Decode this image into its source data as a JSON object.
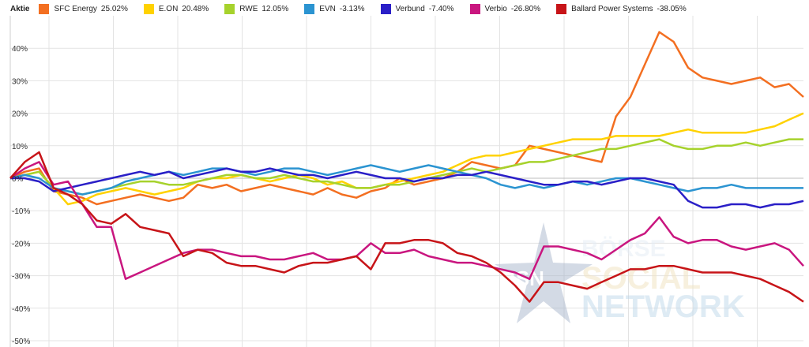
{
  "legend": {
    "title": "Aktie"
  },
  "watermark": {
    "badge": "BSN",
    "line1": "BÖRSE",
    "line2": "SOCIAL",
    "line3": "NETWORK"
  },
  "chart_data": {
    "type": "line",
    "ylim": [
      -50,
      50
    ],
    "yticks": [
      40,
      30,
      20,
      10,
      0,
      -10,
      -20,
      -30,
      -40,
      -50
    ],
    "ytick_labels": [
      "40%",
      "30%",
      "20%",
      "10%",
      "0%",
      "-10%",
      "-20%",
      "-30%",
      "-40%",
      "-50%"
    ],
    "grid": true,
    "legend_position": "top",
    "series": [
      {
        "name": "SFC Energy",
        "value_label": "25.02%",
        "color": "#f36f21",
        "values": [
          0,
          2,
          3,
          -4,
          -5,
          -6,
          -8,
          -7,
          -6,
          -5,
          -6,
          -7,
          -6,
          -2,
          -3,
          -2,
          -4,
          -3,
          -2,
          -3,
          -4,
          -5,
          -3,
          -5,
          -6,
          -4,
          -3,
          0,
          -2,
          -1,
          0,
          2,
          5,
          4,
          3,
          4,
          10,
          9,
          8,
          7,
          6,
          5,
          19,
          25,
          35,
          45,
          42,
          34,
          31,
          30,
          29,
          30,
          31,
          28,
          29,
          25
        ]
      },
      {
        "name": "E.ON",
        "value_label": "20.48%",
        "color": "#ffd200",
        "values": [
          0,
          1,
          2,
          -3,
          -8,
          -7,
          -5,
          -4,
          -3,
          -4,
          -5,
          -4,
          -3,
          -1,
          0,
          0,
          1,
          0,
          -1,
          0,
          1,
          0,
          -2,
          -1,
          -3,
          -3,
          -2,
          -1,
          0,
          1,
          2,
          4,
          6,
          7,
          7,
          8,
          9,
          10,
          11,
          12,
          12,
          12,
          13,
          13,
          13,
          13,
          14,
          15,
          14,
          14,
          14,
          14,
          15,
          16,
          18,
          20
        ]
      },
      {
        "name": "RWE",
        "value_label": "12.05%",
        "color": "#a6d22c",
        "values": [
          0,
          1,
          2,
          -3,
          -4,
          -5,
          -4,
          -3,
          -2,
          -1,
          -1,
          -2,
          -2,
          -1,
          0,
          1,
          1,
          0,
          0,
          1,
          0,
          -1,
          -1,
          -2,
          -3,
          -3,
          -2,
          -2,
          -1,
          0,
          1,
          2,
          3,
          2,
          3,
          4,
          5,
          5,
          6,
          7,
          8,
          9,
          9,
          10,
          11,
          12,
          10,
          9,
          9,
          10,
          10,
          11,
          10,
          11,
          12,
          12
        ]
      },
      {
        "name": "EVN",
        "value_label": "-3.13%",
        "color": "#2b94d1",
        "values": [
          0,
          1,
          0,
          -3,
          -4,
          -5,
          -4,
          -3,
          -1,
          0,
          1,
          2,
          1,
          2,
          3,
          3,
          2,
          1,
          2,
          3,
          3,
          2,
          1,
          2,
          3,
          4,
          3,
          2,
          3,
          4,
          3,
          2,
          1,
          0,
          -2,
          -3,
          -2,
          -3,
          -2,
          -1,
          -2,
          -1,
          0,
          0,
          -1,
          -2,
          -3,
          -4,
          -3,
          -3,
          -2,
          -3,
          -3,
          -3,
          -3,
          -3
        ]
      },
      {
        "name": "Verbund",
        "value_label": "-7.40%",
        "color": "#2a1fc7",
        "values": [
          0,
          0,
          -1,
          -4,
          -3,
          -2,
          -1,
          0,
          1,
          2,
          1,
          2,
          0,
          1,
          2,
          3,
          2,
          2,
          3,
          2,
          1,
          1,
          0,
          1,
          2,
          1,
          0,
          0,
          -1,
          0,
          0,
          1,
          1,
          2,
          1,
          0,
          -1,
          -2,
          -2,
          -1,
          -1,
          -2,
          -1,
          0,
          0,
          -1,
          -2,
          -7,
          -9,
          -9,
          -8,
          -8,
          -9,
          -8,
          -8,
          -7
        ]
      },
      {
        "name": "Verbio",
        "value_label": "-26.80%",
        "color": "#c9167f",
        "values": [
          0,
          3,
          5,
          -2,
          -1,
          -8,
          -15,
          -15,
          -31,
          -29,
          -27,
          -25,
          -23,
          -22,
          -22,
          -23,
          -24,
          -24,
          -25,
          -25,
          -24,
          -23,
          -25,
          -25,
          -24,
          -20,
          -23,
          -23,
          -22,
          -24,
          -25,
          -26,
          -26,
          -27,
          -28,
          -29,
          -31,
          -21,
          -21,
          -22,
          -23,
          -25,
          -22,
          -19,
          -17,
          -12,
          -18,
          -20,
          -19,
          -19,
          -21,
          -22,
          -21,
          -20,
          -22,
          -27
        ]
      },
      {
        "name": "Ballard Power Systems",
        "value_label": "-38.05%",
        "color": "#c71418",
        "values": [
          0,
          5,
          8,
          -3,
          -5,
          -8,
          -13,
          -14,
          -11,
          -15,
          -16,
          -17,
          -24,
          -22,
          -23,
          -26,
          -27,
          -27,
          -28,
          -29,
          -27,
          -26,
          -26,
          -25,
          -24,
          -28,
          -20,
          -20,
          -19,
          -19,
          -20,
          -23,
          -24,
          -26,
          -29,
          -33,
          -38,
          -32,
          -32,
          -33,
          -34,
          -32,
          -30,
          -28,
          -28,
          -27,
          -27,
          -28,
          -29,
          -29,
          -29,
          -30,
          -31,
          -33,
          -35,
          -38
        ]
      }
    ]
  }
}
